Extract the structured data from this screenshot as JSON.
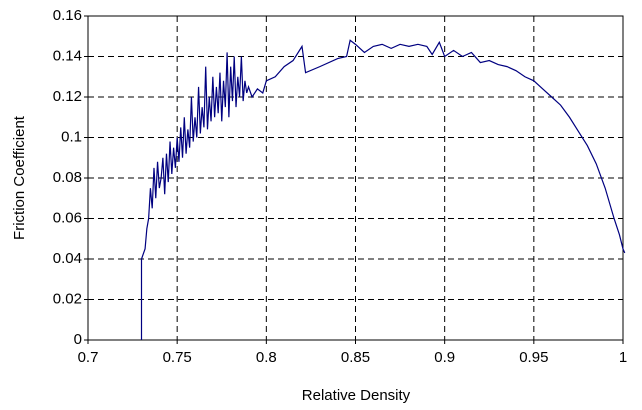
{
  "chart_data": {
    "type": "line",
    "xlabel": "Relative Density",
    "ylabel": "Friction Coefficient",
    "color": "#000080",
    "grid": true,
    "xlim": [
      0.7,
      1.0
    ],
    "xticks": [
      0.7,
      0.75,
      0.8,
      0.85,
      0.9,
      0.95,
      1
    ],
    "ylim": [
      0,
      0.16
    ],
    "yticks": [
      0,
      0.02,
      0.04,
      0.06,
      0.08,
      0.1,
      0.12,
      0.14,
      0.16
    ],
    "x": [
      0.73,
      0.73,
      0.732,
      0.733,
      0.734,
      0.735,
      0.736,
      0.737,
      0.738,
      0.739,
      0.74,
      0.741,
      0.742,
      0.743,
      0.744,
      0.745,
      0.746,
      0.747,
      0.748,
      0.749,
      0.75,
      0.751,
      0.752,
      0.753,
      0.754,
      0.755,
      0.756,
      0.757,
      0.758,
      0.759,
      0.76,
      0.761,
      0.762,
      0.763,
      0.764,
      0.765,
      0.766,
      0.767,
      0.768,
      0.769,
      0.77,
      0.771,
      0.772,
      0.773,
      0.774,
      0.775,
      0.776,
      0.777,
      0.778,
      0.779,
      0.78,
      0.781,
      0.782,
      0.783,
      0.784,
      0.785,
      0.786,
      0.787,
      0.788,
      0.789,
      0.79,
      0.792,
      0.795,
      0.798,
      0.8,
      0.805,
      0.81,
      0.815,
      0.82,
      0.822,
      0.83,
      0.84,
      0.845,
      0.847,
      0.85,
      0.855,
      0.86,
      0.865,
      0.87,
      0.875,
      0.88,
      0.885,
      0.89,
      0.893,
      0.897,
      0.9,
      0.905,
      0.91,
      0.915,
      0.92,
      0.925,
      0.93,
      0.935,
      0.94,
      0.945,
      0.95,
      0.955,
      0.96,
      0.965,
      0.97,
      0.975,
      0.98,
      0.985,
      0.99,
      0.995,
      0.998,
      1.0,
      1.001
    ],
    "values": [
      0,
      0.04,
      0.045,
      0.055,
      0.06,
      0.075,
      0.065,
      0.085,
      0.07,
      0.088,
      0.075,
      0.08,
      0.09,
      0.072,
      0.092,
      0.078,
      0.098,
      0.082,
      0.095,
      0.085,
      0.1,
      0.088,
      0.105,
      0.09,
      0.11,
      0.092,
      0.104,
      0.095,
      0.12,
      0.098,
      0.11,
      0.1,
      0.125,
      0.102,
      0.115,
      0.105,
      0.135,
      0.104,
      0.12,
      0.108,
      0.13,
      0.11,
      0.125,
      0.112,
      0.132,
      0.108,
      0.128,
      0.115,
      0.142,
      0.11,
      0.135,
      0.118,
      0.14,
      0.115,
      0.13,
      0.12,
      0.14,
      0.118,
      0.128,
      0.122,
      0.125,
      0.12,
      0.124,
      0.122,
      0.128,
      0.13,
      0.135,
      0.138,
      0.145,
      0.132,
      0.135,
      0.139,
      0.14,
      0.148,
      0.146,
      0.142,
      0.145,
      0.146,
      0.144,
      0.146,
      0.145,
      0.146,
      0.145,
      0.141,
      0.147,
      0.14,
      0.143,
      0.14,
      0.142,
      0.137,
      0.138,
      0.136,
      0.135,
      0.133,
      0.13,
      0.128,
      0.124,
      0.12,
      0.116,
      0.11,
      0.103,
      0.096,
      0.087,
      0.075,
      0.06,
      0.052,
      0.045,
      0.043
    ]
  }
}
